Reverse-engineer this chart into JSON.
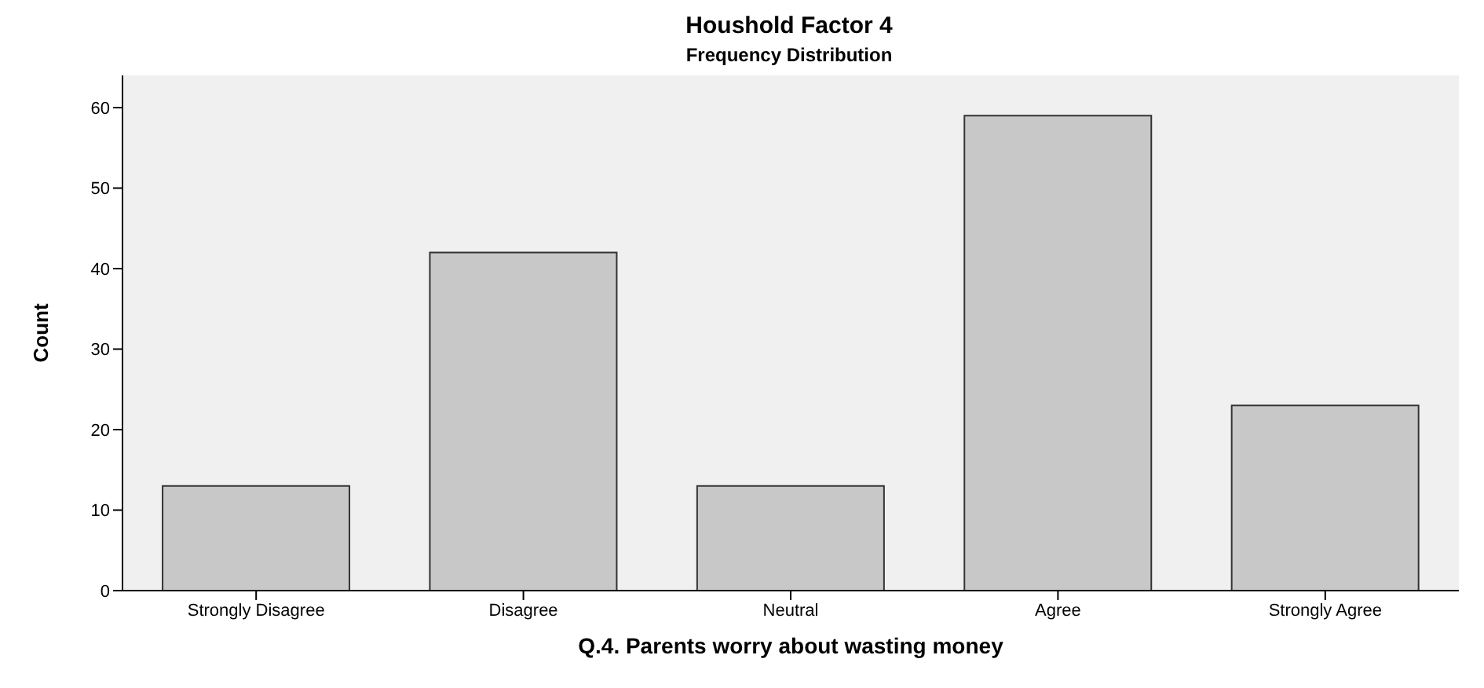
{
  "chart_data": {
    "type": "bar",
    "title": "Houshold Factor 4",
    "subtitle": "Frequency Distribution",
    "xlabel": "Q.4. Parents worry about wasting money",
    "ylabel": "Count",
    "categories": [
      "Strongly Disagree",
      "Disagree",
      "Neutral",
      "Agree",
      "Strongly Agree"
    ],
    "values": [
      13,
      42,
      13,
      59,
      23
    ],
    "color": "#c8c8c8",
    "ylim": [
      0,
      64
    ],
    "yticks": [
      0,
      10,
      20,
      30,
      40,
      50,
      60
    ],
    "grid": false,
    "legend": false
  }
}
